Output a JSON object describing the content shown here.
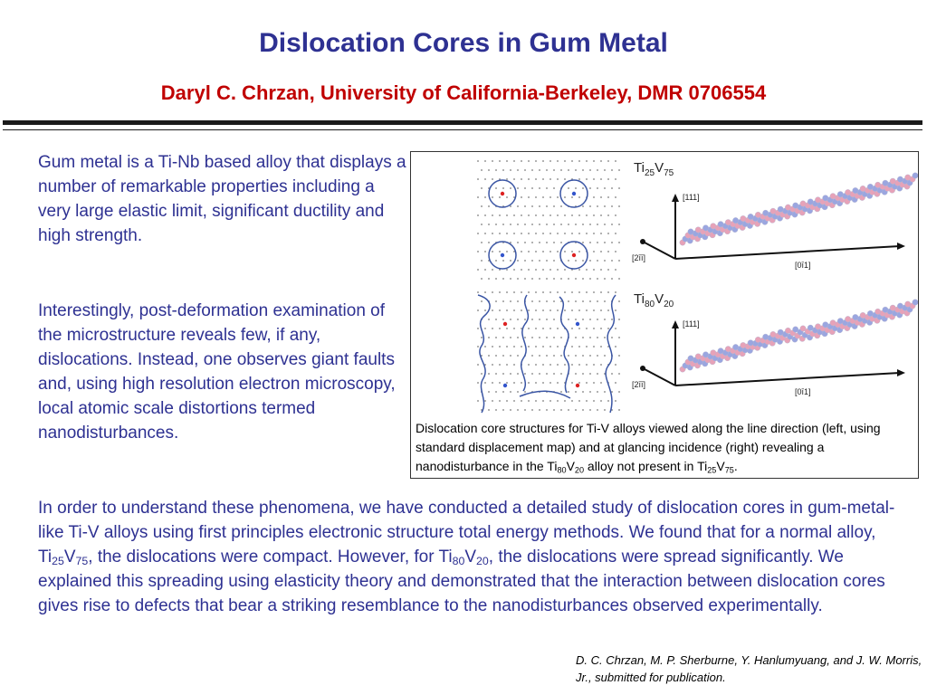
{
  "header": {
    "title": "Dislocation Cores in Gum Metal",
    "subtitle": "Daryl C. Chrzan, University of California-Berkeley, DMR 0706554"
  },
  "intro": {
    "paragraph1": "Gum metal is a Ti-Nb based alloy that displays a number of remarkable properties including a very large elastic limit, significant ductility and high strength.",
    "paragraph2": "Interestingly, post-deformation examination of the microstructure reveals few, if any, dislocations. Instead, one observes giant faults and, using high resolution electron microscopy, local atomic scale distortions termed nanodisturbances."
  },
  "figure": {
    "panel_top_label": {
      "el1": "Ti",
      "n1": "25",
      "el2": "V",
      "n2": "75"
    },
    "panel_bottom_label": {
      "el1": "Ti",
      "n1": "80",
      "el2": "V",
      "n2": "20"
    },
    "axis_up": "[111]",
    "axis_left": "[2īī]",
    "axis_right": "[0ī1]",
    "caption_lead": "Dislocation core structures for  Ti-V alloys viewed along the line direction (left, using standard displacement map) and at glancing incidence (right) revealing a nanodisturbance in the Ti",
    "caption_sub1": "80",
    "caption_mid1": "V",
    "caption_sub2": "20",
    "caption_mid2": " alloy not present in Ti",
    "caption_sub3": "25",
    "caption_mid3": "V",
    "caption_sub4": "75",
    "caption_end": ".",
    "colors": {
      "atom_pink": "#e7a2b8",
      "atom_blue": "#9aa6e0",
      "contour": "#3a55a4",
      "core_red": "#d22",
      "core_blue": "#3355cc"
    }
  },
  "body": {
    "lead": "In order to understand these phenomena, we have conducted a detailed study of dislocation cores in gum-metal-like Ti-V alloys using first principles electronic structure total energy methods.  We found that for a normal alloy, Ti",
    "sub1": "25",
    "mid1": "V",
    "sub2": "75",
    "mid2": ", the dislocations were compact.  However, for Ti",
    "sub3": "80",
    "mid3": "V",
    "sub4": "20",
    "tail": ", the dislocations were spread significantly.  We explained this spreading using elasticity theory and  demonstrated that the interaction between dislocation cores gives rise to defects that bear a striking resemblance to the nanodisturbances observed experimentally."
  },
  "citation": "D. C. Chrzan, M. P. Sherburne, Y. Hanlumyuang, and J. W. Morris, Jr., submitted for publication.",
  "colors": {
    "title": "#2e3192",
    "subtitle": "#c00000",
    "text": "#2e3192"
  }
}
